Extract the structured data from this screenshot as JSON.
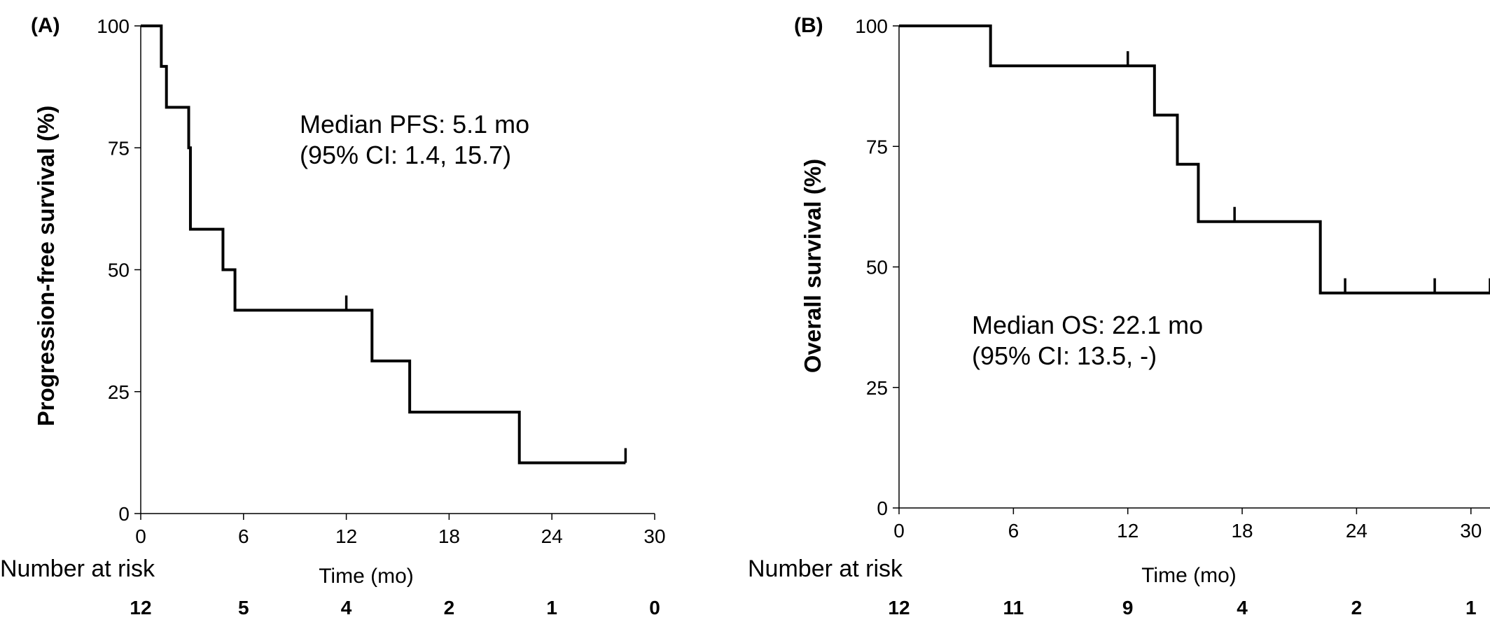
{
  "chart_data": [
    {
      "panel": "(A)",
      "type": "line",
      "subtype": "kaplan-meier",
      "ylabel": "Progression-free survival (%)",
      "xlabel": "Time (mo)",
      "xlim": [
        0,
        30
      ],
      "ylim": [
        0,
        100
      ],
      "xticks": [
        0,
        6,
        12,
        18,
        24,
        30
      ],
      "yticks": [
        0,
        25,
        50,
        75,
        100
      ],
      "grid": false,
      "steps": [
        [
          0,
          100
        ],
        [
          1.2,
          91.7
        ],
        [
          1.5,
          83.3
        ],
        [
          2.8,
          75
        ],
        [
          2.9,
          58.3
        ],
        [
          4.8,
          50
        ],
        [
          5.5,
          41.7
        ],
        [
          13.5,
          31.3
        ],
        [
          15.7,
          20.8
        ],
        [
          22.1,
          10.4
        ]
      ],
      "x_end": 28.3,
      "censored": [
        [
          12.0,
          41.7
        ],
        [
          28.3,
          10.4
        ]
      ],
      "annotation": [
        "Median PFS: 5.1 mo",
        "(95% CI: 1.4, 15.7)"
      ],
      "risk_title": "Number at risk",
      "risk_times": [
        0,
        6,
        12,
        18,
        24,
        30
      ],
      "risk_counts": [
        "12",
        "5",
        "4",
        "2",
        "1",
        "0"
      ]
    },
    {
      "panel": "(B)",
      "type": "line",
      "subtype": "kaplan-meier",
      "ylabel": "Overall survival (%)",
      "xlabel": "Time (mo)",
      "xlim": [
        0,
        31
      ],
      "ylim": [
        0,
        100
      ],
      "xticks": [
        0,
        6,
        12,
        18,
        24,
        30
      ],
      "yticks": [
        0,
        25,
        50,
        75,
        100
      ],
      "grid": false,
      "steps": [
        [
          0,
          100
        ],
        [
          4.8,
          91.7
        ],
        [
          13.4,
          81.5
        ],
        [
          14.6,
          71.3
        ],
        [
          15.7,
          59.4
        ],
        [
          22.1,
          44.6
        ]
      ],
      "x_end": 31,
      "censored": [
        [
          12.0,
          91.7
        ],
        [
          14.6,
          71.3
        ],
        [
          17.6,
          59.4
        ],
        [
          23.4,
          44.6
        ],
        [
          28.1,
          44.6
        ],
        [
          31.0,
          44.6
        ]
      ],
      "annotation": [
        "Median OS: 22.1 mo",
        "(95% CI: 13.5, -)"
      ],
      "risk_title": "Number at risk",
      "risk_times": [
        0,
        6,
        12,
        18,
        24,
        30
      ],
      "risk_counts": [
        "12",
        "11",
        "9",
        "4",
        "2",
        "1"
      ]
    }
  ]
}
